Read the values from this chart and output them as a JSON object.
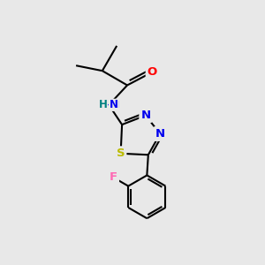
{
  "background_color": "#e8e8e8",
  "atom_colors": {
    "C": "#000000",
    "N": "#0000ee",
    "O": "#ff0000",
    "S": "#bbbb00",
    "F": "#ff69b4",
    "H": "#008080"
  },
  "bond_color": "#000000",
  "bond_width": 1.5,
  "figsize": [
    3.0,
    3.0
  ],
  "dpi": 100
}
